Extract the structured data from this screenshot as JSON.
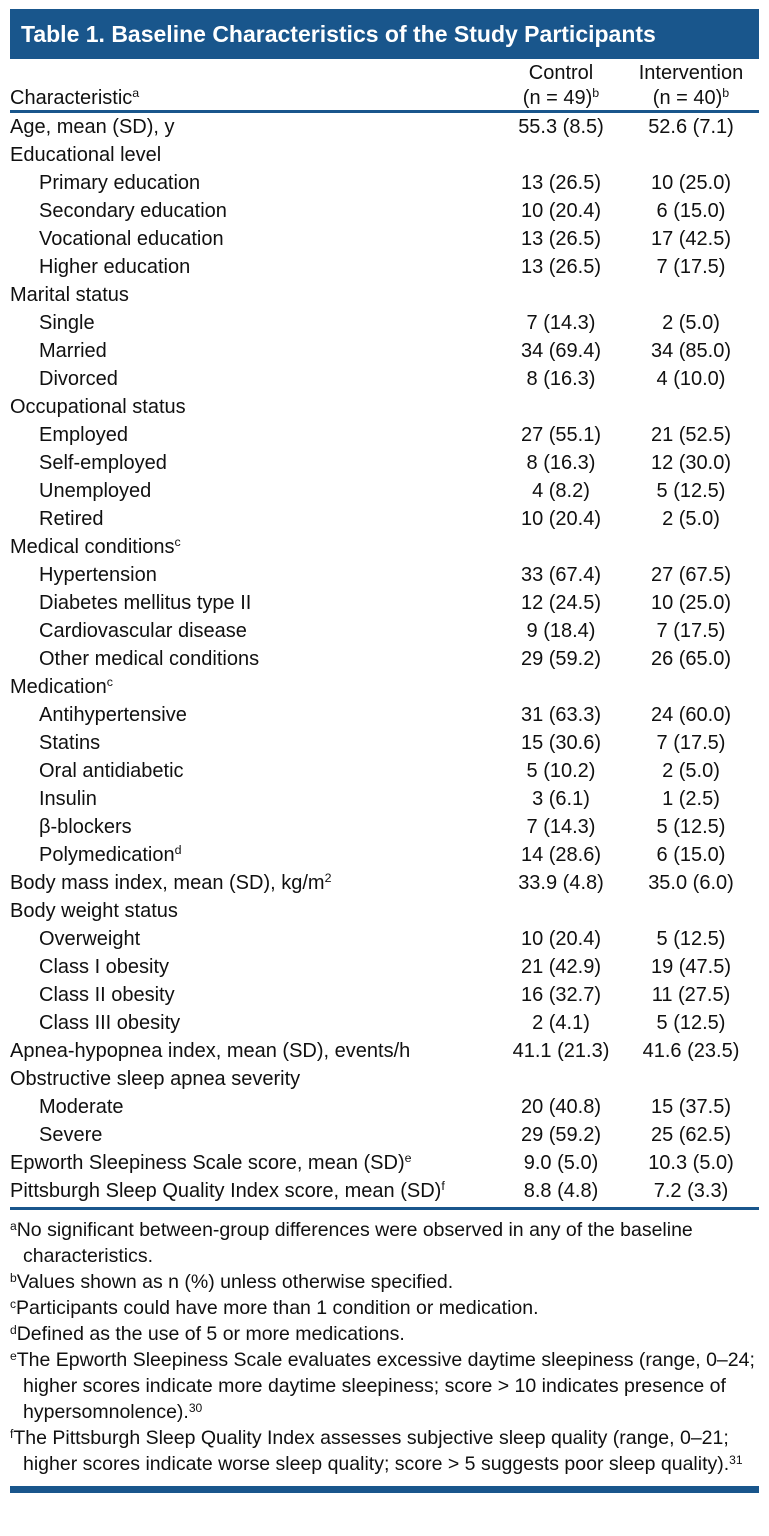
{
  "colors": {
    "accent": "#19568c",
    "title_text": "#ffffff",
    "body_text": "#101010"
  },
  "table": {
    "title": "Table 1. Baseline Characteristics of the Study Participants",
    "columns": {
      "characteristic": {
        "label": "Characteristic",
        "sup": "a"
      },
      "control": {
        "name": "Control",
        "n": "(n = 49)",
        "sup": "b"
      },
      "intervention": {
        "name": "Intervention",
        "n": "(n = 40)",
        "sup": "b"
      }
    },
    "rows": [
      {
        "label": "Age, mean (SD), y",
        "indent": 0,
        "control": "55.3 (8.5)",
        "intervention": "52.6 (7.1)"
      },
      {
        "label": "Educational level",
        "indent": 0,
        "control": "",
        "intervention": ""
      },
      {
        "label": "Primary education",
        "indent": 1,
        "control": "13 (26.5)",
        "intervention": "10 (25.0)"
      },
      {
        "label": "Secondary education",
        "indent": 1,
        "control": "10 (20.4)",
        "intervention": "6 (15.0)"
      },
      {
        "label": "Vocational education",
        "indent": 1,
        "control": "13 (26.5)",
        "intervention": "17 (42.5)"
      },
      {
        "label": "Higher education",
        "indent": 1,
        "control": "13 (26.5)",
        "intervention": "7 (17.5)"
      },
      {
        "label": "Marital status",
        "indent": 0,
        "control": "",
        "intervention": ""
      },
      {
        "label": "Single",
        "indent": 1,
        "control": "7 (14.3)",
        "intervention": "2 (5.0)"
      },
      {
        "label": "Married",
        "indent": 1,
        "control": "34 (69.4)",
        "intervention": "34 (85.0)"
      },
      {
        "label": "Divorced",
        "indent": 1,
        "control": "8 (16.3)",
        "intervention": "4 (10.0)"
      },
      {
        "label": "Occupational status",
        "indent": 0,
        "control": "",
        "intervention": ""
      },
      {
        "label": "Employed",
        "indent": 1,
        "control": "27 (55.1)",
        "intervention": "21 (52.5)"
      },
      {
        "label": "Self-employed",
        "indent": 1,
        "control": "8 (16.3)",
        "intervention": "12 (30.0)"
      },
      {
        "label": "Unemployed",
        "indent": 1,
        "control": "4 (8.2)",
        "intervention": "5 (12.5)"
      },
      {
        "label": "Retired",
        "indent": 1,
        "control": "10 (20.4)",
        "intervention": "2 (5.0)"
      },
      {
        "label": "Medical conditions",
        "sup": "c",
        "indent": 0,
        "control": "",
        "intervention": ""
      },
      {
        "label": "Hypertension",
        "indent": 1,
        "control": "33 (67.4)",
        "intervention": "27 (67.5)"
      },
      {
        "label": "Diabetes mellitus type II",
        "indent": 1,
        "control": "12 (24.5)",
        "intervention": "10 (25.0)"
      },
      {
        "label": "Cardiovascular disease",
        "indent": 1,
        "control": "9 (18.4)",
        "intervention": "7 (17.5)"
      },
      {
        "label": "Other medical conditions",
        "indent": 1,
        "control": "29 (59.2)",
        "intervention": "26 (65.0)"
      },
      {
        "label": "Medication",
        "sup": "c",
        "indent": 0,
        "control": "",
        "intervention": ""
      },
      {
        "label": "Antihypertensive",
        "indent": 1,
        "control": "31 (63.3)",
        "intervention": "24 (60.0)"
      },
      {
        "label": "Statins",
        "indent": 1,
        "control": "15 (30.6)",
        "intervention": "7 (17.5)"
      },
      {
        "label": "Oral antidiabetic",
        "indent": 1,
        "control": "5 (10.2)",
        "intervention": "2 (5.0)"
      },
      {
        "label": "Insulin",
        "indent": 1,
        "control": "3 (6.1)",
        "intervention": "1 (2.5)"
      },
      {
        "label": "β-blockers",
        "indent": 1,
        "control": "7 (14.3)",
        "intervention": "5 (12.5)"
      },
      {
        "label": "Polymedication",
        "sup": "d",
        "indent": 1,
        "control": "14 (28.6)",
        "intervention": "6 (15.0)"
      },
      {
        "label": "Body mass index, mean (SD), kg/m",
        "sup": "2",
        "indent": 0,
        "control": "33.9 (4.8)",
        "intervention": "35.0 (6.0)"
      },
      {
        "label": "Body weight status",
        "indent": 0,
        "control": "",
        "intervention": ""
      },
      {
        "label": "Overweight",
        "indent": 1,
        "control": "10 (20.4)",
        "intervention": "5 (12.5)"
      },
      {
        "label": "Class I obesity",
        "indent": 1,
        "control": "21 (42.9)",
        "intervention": "19 (47.5)"
      },
      {
        "label": "Class II obesity",
        "indent": 1,
        "control": "16 (32.7)",
        "intervention": "11 (27.5)"
      },
      {
        "label": "Class III obesity",
        "indent": 1,
        "control": "2 (4.1)",
        "intervention": "5 (12.5)"
      },
      {
        "label": "Apnea-hypopnea index, mean (SD), events/h",
        "indent": 0,
        "control": "41.1 (21.3)",
        "intervention": "41.6 (23.5)"
      },
      {
        "label": "Obstructive sleep apnea severity",
        "indent": 0,
        "control": "",
        "intervention": ""
      },
      {
        "label": "Moderate",
        "indent": 1,
        "control": "20 (40.8)",
        "intervention": "15 (37.5)"
      },
      {
        "label": "Severe",
        "indent": 1,
        "control": "29 (59.2)",
        "intervention": "25 (62.5)"
      },
      {
        "label": "Epworth Sleepiness Scale score, mean (SD)",
        "sup": "e",
        "indent": 0,
        "control": "9.0 (5.0)",
        "intervention": "10.3 (5.0)"
      },
      {
        "label": "Pittsburgh Sleep Quality Index score, mean (SD)",
        "sup": "f",
        "indent": 0,
        "control": "8.8 (4.8)",
        "intervention": "7.2 (3.3)"
      }
    ],
    "footnotes": [
      {
        "sup": "a",
        "text": "No significant between-group differences were observed in any of the baseline characteristics."
      },
      {
        "sup": "b",
        "text": "Values shown as n (%) unless otherwise specified."
      },
      {
        "sup": "c",
        "text": "Participants could have more than 1 condition or medication."
      },
      {
        "sup": "d",
        "text": "Defined as the use of 5 or more medications."
      },
      {
        "sup": "e",
        "text": "The Epworth Sleepiness Scale evaluates excessive daytime sleepiness (range, 0–24; higher scores indicate more daytime sleepiness; score > 10 indicates presence of hypersomnolence).",
        "ref": "30"
      },
      {
        "sup": "f",
        "text": "The Pittsburgh Sleep Quality Index assesses subjective sleep quality (range, 0–21; higher scores indicate worse sleep quality; score > 5 suggests poor sleep quality).",
        "ref": "31"
      }
    ]
  }
}
